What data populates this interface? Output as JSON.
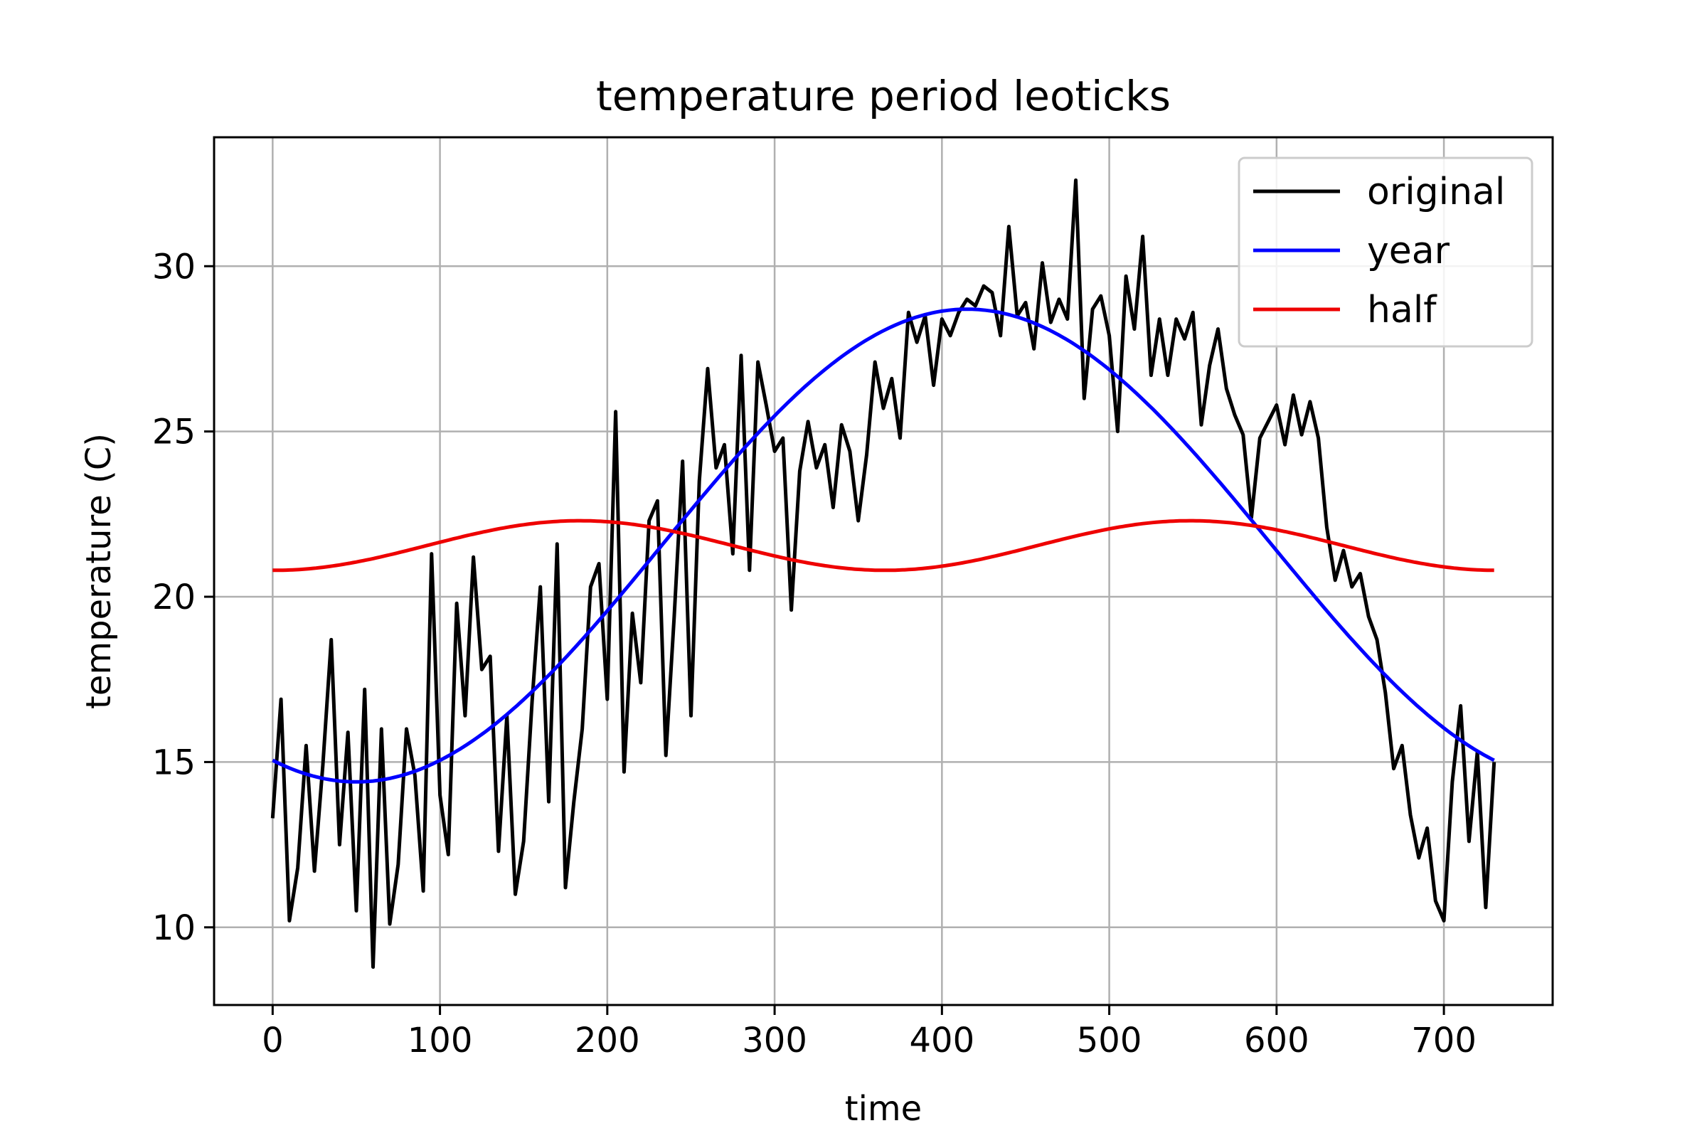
{
  "chart_data": {
    "type": "line",
    "title": "temperature period leoticks",
    "xlabel": "time",
    "ylabel": "temperature (C)",
    "xlim": [
      -35,
      765
    ],
    "ylim": [
      7.65,
      33.9
    ],
    "x_ticks": [
      0,
      100,
      200,
      300,
      400,
      500,
      600,
      700
    ],
    "y_ticks": [
      10,
      15,
      20,
      25,
      30
    ],
    "grid": true,
    "legend_position": "top-right",
    "x_range": [
      0,
      730
    ],
    "series": [
      {
        "name": "original",
        "color": "#000000",
        "x": [
          0,
          5,
          10,
          15,
          20,
          25,
          30,
          35,
          40,
          45,
          50,
          55,
          60,
          65,
          70,
          75,
          80,
          85,
          90,
          95,
          100,
          105,
          110,
          115,
          120,
          125,
          130,
          135,
          140,
          145,
          150,
          155,
          160,
          165,
          170,
          175,
          180,
          185,
          190,
          195,
          200,
          205,
          210,
          215,
          220,
          225,
          230,
          235,
          240,
          245,
          250,
          255,
          260,
          265,
          270,
          275,
          280,
          285,
          290,
          295,
          300,
          305,
          310,
          315,
          320,
          325,
          330,
          335,
          340,
          345,
          350,
          355,
          360,
          365,
          370,
          375,
          380,
          385,
          390,
          395,
          400,
          405,
          410,
          415,
          420,
          425,
          430,
          435,
          440,
          445,
          450,
          455,
          460,
          465,
          470,
          475,
          480,
          485,
          490,
          495,
          500,
          505,
          510,
          515,
          520,
          525,
          530,
          535,
          540,
          545,
          550,
          555,
          560,
          565,
          570,
          575,
          580,
          585,
          590,
          595,
          600,
          605,
          610,
          615,
          620,
          625,
          630,
          635,
          640,
          645,
          650,
          655,
          660,
          665,
          670,
          675,
          680,
          685,
          690,
          695,
          700,
          705,
          710,
          715,
          720,
          725,
          730
        ],
        "values": [
          13.3,
          16.9,
          10.2,
          11.8,
          15.5,
          11.7,
          14.9,
          18.7,
          12.5,
          15.9,
          10.5,
          17.2,
          8.8,
          16.0,
          10.1,
          11.9,
          16.0,
          14.6,
          11.1,
          21.3,
          14.0,
          12.2,
          19.8,
          16.4,
          21.2,
          17.8,
          18.2,
          12.3,
          16.4,
          11.0,
          12.6,
          16.8,
          20.3,
          13.8,
          21.6,
          11.2,
          13.8,
          16.0,
          20.3,
          21.0,
          16.9,
          25.6,
          14.7,
          19.5,
          17.4,
          22.3,
          22.9,
          15.2,
          19.4,
          24.1,
          16.4,
          23.5,
          26.9,
          23.9,
          24.6,
          21.3,
          27.3,
          20.8,
          27.1,
          25.8,
          24.4,
          24.8,
          19.6,
          23.8,
          25.3,
          23.9,
          24.6,
          22.7,
          25.2,
          24.4,
          22.3,
          24.3,
          27.1,
          25.7,
          26.6,
          24.8,
          28.6,
          27.7,
          28.5,
          26.4,
          28.4,
          27.9,
          28.6,
          29.0,
          28.8,
          29.4,
          29.2,
          27.9,
          31.2,
          28.5,
          28.9,
          27.5,
          30.1,
          28.3,
          29.0,
          28.4,
          32.6,
          26.0,
          28.7,
          29.1,
          27.9,
          25.0,
          29.7,
          28.1,
          30.9,
          26.7,
          28.4,
          26.7,
          28.4,
          27.8,
          28.6,
          25.2,
          27.0,
          28.1,
          26.3,
          25.5,
          24.9,
          22.4,
          24.8,
          25.3,
          25.8,
          24.6,
          26.1,
          24.9,
          25.9,
          24.8,
          22.1,
          20.5,
          21.4,
          20.3,
          20.7,
          19.4,
          18.7,
          17.1,
          14.8,
          15.5,
          13.4,
          12.1,
          13.0,
          10.8,
          10.2,
          14.4,
          16.7,
          12.6,
          15.3,
          10.6,
          15.0
        ]
      },
      {
        "name": "year",
        "color": "#0000ff",
        "function": "21.55 - 7.15*cos(2*pi*(t-50)/730)"
      },
      {
        "name": "half",
        "color": "#ee0000",
        "function": "21.55 - 0.75*cos(2*pi*(t-1)/365)"
      }
    ]
  }
}
